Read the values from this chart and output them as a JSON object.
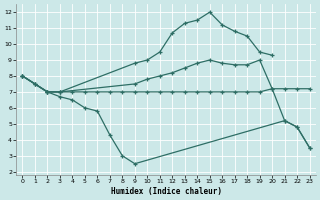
{
  "xlabel": "Humidex (Indice chaleur)",
  "bg_color": "#cce8e8",
  "line_color": "#2e6e65",
  "grid_color": "#ffffff",
  "xlim": [
    -0.5,
    23.5
  ],
  "ylim": [
    1.8,
    12.5
  ],
  "xticks": [
    0,
    1,
    2,
    3,
    4,
    5,
    6,
    7,
    8,
    9,
    10,
    11,
    12,
    13,
    14,
    15,
    16,
    17,
    18,
    19,
    20,
    21,
    22,
    23
  ],
  "yticks": [
    2,
    3,
    4,
    5,
    6,
    7,
    8,
    9,
    10,
    11,
    12
  ],
  "line1_x": [
    0,
    1,
    2,
    3,
    9,
    10,
    11,
    12,
    13,
    14,
    15,
    16,
    17,
    18,
    19,
    20
  ],
  "line1_y": [
    8.0,
    7.5,
    7.0,
    7.0,
    8.8,
    9.0,
    9.5,
    10.7,
    11.3,
    11.5,
    12.0,
    11.2,
    10.8,
    10.5,
    9.5,
    9.3
  ],
  "line2_x": [
    0,
    1,
    2,
    3,
    9,
    10,
    11,
    12,
    13,
    14,
    15,
    16,
    17,
    18,
    19,
    20,
    21,
    22,
    23
  ],
  "line2_y": [
    8.0,
    7.5,
    7.0,
    7.0,
    7.5,
    7.8,
    8.0,
    8.2,
    8.5,
    8.8,
    9.0,
    8.8,
    8.7,
    8.7,
    9.0,
    7.2,
    5.2,
    4.8,
    3.5
  ],
  "line3_x": [
    0,
    2,
    3,
    4,
    5,
    6,
    7,
    8,
    9,
    21,
    22,
    23
  ],
  "line3_y": [
    8.0,
    7.0,
    6.7,
    6.5,
    6.0,
    5.8,
    4.3,
    3.0,
    2.5,
    5.2,
    4.8,
    3.5
  ],
  "line4_x": [
    0,
    1,
    2,
    3,
    4,
    5,
    6,
    7,
    8,
    9,
    10,
    11,
    12,
    13,
    14,
    15,
    16,
    17,
    18,
    19,
    20,
    21,
    22,
    23
  ],
  "line4_y": [
    8.0,
    7.5,
    7.0,
    7.0,
    7.0,
    7.0,
    7.0,
    7.0,
    7.0,
    7.0,
    7.0,
    7.0,
    7.0,
    7.0,
    7.0,
    7.0,
    7.0,
    7.0,
    7.0,
    7.0,
    7.2,
    7.2,
    7.2,
    7.2
  ]
}
